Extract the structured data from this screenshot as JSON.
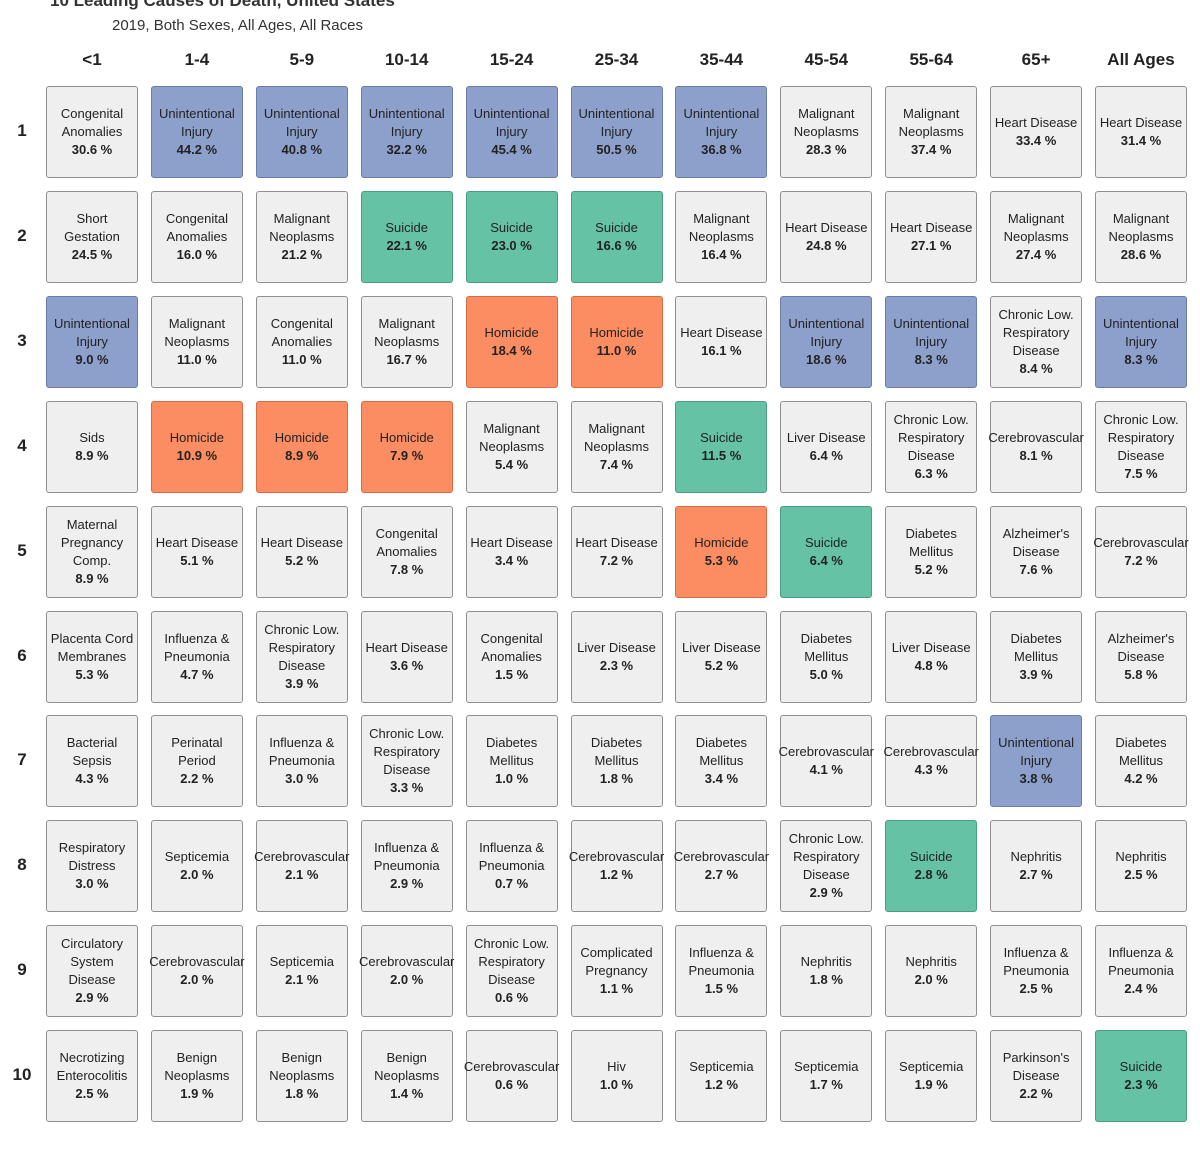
{
  "header": {
    "title": "10 Leading Causes of Death, United States",
    "subtitle": "2019, Both Sexes, All Ages, All Races"
  },
  "colors": {
    "Unintentional Injury": "#8d9fcb",
    "Suicide": "#66c2a5",
    "Homicide": "#fc8d62",
    "default": "#efefef"
  },
  "chart_data": {
    "type": "table",
    "columns": [
      "<1",
      "1-4",
      "5-9",
      "10-14",
      "15-24",
      "25-34",
      "35-44",
      "45-54",
      "55-64",
      "65+",
      "All Ages"
    ],
    "ranks": [
      "1",
      "2",
      "3",
      "4",
      "5",
      "6",
      "7",
      "8",
      "9",
      "10"
    ],
    "cells": [
      [
        {
          "cause": "Congenital\nAnomalies",
          "pct": "30.6 %"
        },
        {
          "cause": "Unintentional\nInjury",
          "pct": "44.2 %"
        },
        {
          "cause": "Unintentional\nInjury",
          "pct": "40.8 %"
        },
        {
          "cause": "Unintentional\nInjury",
          "pct": "32.2 %"
        },
        {
          "cause": "Unintentional\nInjury",
          "pct": "45.4 %"
        },
        {
          "cause": "Unintentional\nInjury",
          "pct": "50.5 %"
        },
        {
          "cause": "Unintentional\nInjury",
          "pct": "36.8 %"
        },
        {
          "cause": "Malignant\nNeoplasms",
          "pct": "28.3 %"
        },
        {
          "cause": "Malignant\nNeoplasms",
          "pct": "37.4 %"
        },
        {
          "cause": "Heart Disease",
          "pct": "33.4 %"
        },
        {
          "cause": "Heart Disease",
          "pct": "31.4 %"
        }
      ],
      [
        {
          "cause": "Short Gestation",
          "pct": "24.5 %"
        },
        {
          "cause": "Congenital\nAnomalies",
          "pct": "16.0 %"
        },
        {
          "cause": "Malignant\nNeoplasms",
          "pct": "21.2 %"
        },
        {
          "cause": "Suicide",
          "pct": "22.1 %"
        },
        {
          "cause": "Suicide",
          "pct": "23.0 %"
        },
        {
          "cause": "Suicide",
          "pct": "16.6 %"
        },
        {
          "cause": "Malignant\nNeoplasms",
          "pct": "16.4 %"
        },
        {
          "cause": "Heart Disease",
          "pct": "24.8 %"
        },
        {
          "cause": "Heart Disease",
          "pct": "27.1 %"
        },
        {
          "cause": "Malignant\nNeoplasms",
          "pct": "27.4 %"
        },
        {
          "cause": "Malignant\nNeoplasms",
          "pct": "28.6 %"
        }
      ],
      [
        {
          "cause": "Unintentional\nInjury",
          "pct": "9.0 %"
        },
        {
          "cause": "Malignant\nNeoplasms",
          "pct": "11.0 %"
        },
        {
          "cause": "Congenital\nAnomalies",
          "pct": "11.0 %"
        },
        {
          "cause": "Malignant\nNeoplasms",
          "pct": "16.7 %"
        },
        {
          "cause": "Homicide",
          "pct": "18.4 %"
        },
        {
          "cause": "Homicide",
          "pct": "11.0 %"
        },
        {
          "cause": "Heart Disease",
          "pct": "16.1 %"
        },
        {
          "cause": "Unintentional\nInjury",
          "pct": "18.6 %"
        },
        {
          "cause": "Unintentional\nInjury",
          "pct": "8.3 %"
        },
        {
          "cause": "Chronic Low.\nRespiratory\nDisease",
          "pct": "8.4 %"
        },
        {
          "cause": "Unintentional\nInjury",
          "pct": "8.3 %"
        }
      ],
      [
        {
          "cause": "Sids",
          "pct": "8.9 %"
        },
        {
          "cause": "Homicide",
          "pct": "10.9 %"
        },
        {
          "cause": "Homicide",
          "pct": "8.9 %"
        },
        {
          "cause": "Homicide",
          "pct": "7.9 %"
        },
        {
          "cause": "Malignant\nNeoplasms",
          "pct": "5.4 %"
        },
        {
          "cause": "Malignant\nNeoplasms",
          "pct": "7.4 %"
        },
        {
          "cause": "Suicide",
          "pct": "11.5 %"
        },
        {
          "cause": "Liver Disease",
          "pct": "6.4 %"
        },
        {
          "cause": "Chronic Low.\nRespiratory\nDisease",
          "pct": "6.3 %"
        },
        {
          "cause": "Cerebrovascular",
          "pct": "8.1 %"
        },
        {
          "cause": "Chronic Low.\nRespiratory\nDisease",
          "pct": "7.5 %"
        }
      ],
      [
        {
          "cause": "Maternal\nPregnancy\nComp.",
          "pct": "8.9 %"
        },
        {
          "cause": "Heart Disease",
          "pct": "5.1 %"
        },
        {
          "cause": "Heart Disease",
          "pct": "5.2 %"
        },
        {
          "cause": "Congenital\nAnomalies",
          "pct": "7.8 %"
        },
        {
          "cause": "Heart Disease",
          "pct": "3.4 %"
        },
        {
          "cause": "Heart Disease",
          "pct": "7.2 %"
        },
        {
          "cause": "Homicide",
          "pct": "5.3 %"
        },
        {
          "cause": "Suicide",
          "pct": "6.4 %"
        },
        {
          "cause": "Diabetes\nMellitus",
          "pct": "5.2 %"
        },
        {
          "cause": "Alzheimer's\nDisease",
          "pct": "7.6 %"
        },
        {
          "cause": "Cerebrovascular",
          "pct": "7.2 %"
        }
      ],
      [
        {
          "cause": "Placenta Cord\nMembranes",
          "pct": "5.3 %"
        },
        {
          "cause": "Influenza &\nPneumonia",
          "pct": "4.7 %"
        },
        {
          "cause": "Chronic Low.\nRespiratory\nDisease",
          "pct": "3.9 %"
        },
        {
          "cause": "Heart Disease",
          "pct": "3.6 %"
        },
        {
          "cause": "Congenital\nAnomalies",
          "pct": "1.5 %"
        },
        {
          "cause": "Liver Disease",
          "pct": "2.3 %"
        },
        {
          "cause": "Liver Disease",
          "pct": "5.2 %"
        },
        {
          "cause": "Diabetes\nMellitus",
          "pct": "5.0 %"
        },
        {
          "cause": "Liver Disease",
          "pct": "4.8 %"
        },
        {
          "cause": "Diabetes\nMellitus",
          "pct": "3.9 %"
        },
        {
          "cause": "Alzheimer's\nDisease",
          "pct": "5.8 %"
        }
      ],
      [
        {
          "cause": "Bacterial Sepsis",
          "pct": "4.3 %"
        },
        {
          "cause": "Perinatal Period",
          "pct": "2.2 %"
        },
        {
          "cause": "Influenza &\nPneumonia",
          "pct": "3.0 %"
        },
        {
          "cause": "Chronic Low.\nRespiratory\nDisease",
          "pct": "3.3 %"
        },
        {
          "cause": "Diabetes\nMellitus",
          "pct": "1.0 %"
        },
        {
          "cause": "Diabetes\nMellitus",
          "pct": "1.8 %"
        },
        {
          "cause": "Diabetes\nMellitus",
          "pct": "3.4 %"
        },
        {
          "cause": "Cerebrovascular",
          "pct": "4.1 %"
        },
        {
          "cause": "Cerebrovascular",
          "pct": "4.3 %"
        },
        {
          "cause": "Unintentional\nInjury",
          "pct": "3.8 %"
        },
        {
          "cause": "Diabetes\nMellitus",
          "pct": "4.2 %"
        }
      ],
      [
        {
          "cause": "Respiratory\nDistress",
          "pct": "3.0 %"
        },
        {
          "cause": "Septicemia",
          "pct": "2.0 %"
        },
        {
          "cause": "Cerebrovascular",
          "pct": "2.1 %"
        },
        {
          "cause": "Influenza &\nPneumonia",
          "pct": "2.9 %"
        },
        {
          "cause": "Influenza &\nPneumonia",
          "pct": "0.7 %"
        },
        {
          "cause": "Cerebrovascular",
          "pct": "1.2 %"
        },
        {
          "cause": "Cerebrovascular",
          "pct": "2.7 %"
        },
        {
          "cause": "Chronic Low.\nRespiratory\nDisease",
          "pct": "2.9 %"
        },
        {
          "cause": "Suicide",
          "pct": "2.8 %"
        },
        {
          "cause": "Nephritis",
          "pct": "2.7 %"
        },
        {
          "cause": "Nephritis",
          "pct": "2.5 %"
        }
      ],
      [
        {
          "cause": "Circulatory\nSystem Disease",
          "pct": "2.9 %"
        },
        {
          "cause": "Cerebrovascular",
          "pct": "2.0 %"
        },
        {
          "cause": "Septicemia",
          "pct": "2.1 %"
        },
        {
          "cause": "Cerebrovascular",
          "pct": "2.0 %"
        },
        {
          "cause": "Chronic Low.\nRespiratory\nDisease",
          "pct": "0.6 %"
        },
        {
          "cause": "Complicated\nPregnancy",
          "pct": "1.1 %"
        },
        {
          "cause": "Influenza &\nPneumonia",
          "pct": "1.5 %"
        },
        {
          "cause": "Nephritis",
          "pct": "1.8 %"
        },
        {
          "cause": "Nephritis",
          "pct": "2.0 %"
        },
        {
          "cause": "Influenza &\nPneumonia",
          "pct": "2.5 %"
        },
        {
          "cause": "Influenza &\nPneumonia",
          "pct": "2.4 %"
        }
      ],
      [
        {
          "cause": "Necrotizing\nEnterocolitis",
          "pct": "2.5 %"
        },
        {
          "cause": "Benign\nNeoplasms",
          "pct": "1.9 %"
        },
        {
          "cause": "Benign\nNeoplasms",
          "pct": "1.8 %"
        },
        {
          "cause": "Benign\nNeoplasms",
          "pct": "1.4 %"
        },
        {
          "cause": "Cerebrovascular",
          "pct": "0.6 %"
        },
        {
          "cause": "Hiv",
          "pct": "1.0 %"
        },
        {
          "cause": "Septicemia",
          "pct": "1.2 %"
        },
        {
          "cause": "Septicemia",
          "pct": "1.7 %"
        },
        {
          "cause": "Septicemia",
          "pct": "1.9 %"
        },
        {
          "cause": "Parkinson's\nDisease",
          "pct": "2.2 %"
        },
        {
          "cause": "Suicide",
          "pct": "2.3 %"
        }
      ]
    ]
  }
}
